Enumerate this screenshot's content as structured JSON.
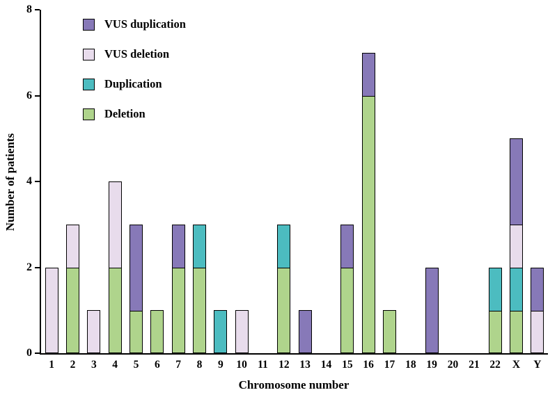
{
  "chart_data": {
    "type": "bar",
    "stacked": true,
    "title": "",
    "xlabel": "Chromosome number",
    "ylabel": "Number of patients",
    "ylim": [
      0,
      8
    ],
    "yticks": [
      0,
      2,
      4,
      6,
      8
    ],
    "grid": false,
    "legend_position": "top-left",
    "categories": [
      "1",
      "2",
      "3",
      "4",
      "5",
      "6",
      "7",
      "8",
      "9",
      "10",
      "11",
      "12",
      "13",
      "14",
      "15",
      "16",
      "17",
      "18",
      "19",
      "20",
      "21",
      "22",
      "X",
      "Y"
    ],
    "series": [
      {
        "name": "VUS duplication",
        "color": "#8779b8",
        "values": [
          0,
          0,
          0,
          0,
          2,
          0,
          1,
          0,
          0,
          0,
          0,
          0,
          1,
          0,
          1,
          1,
          0,
          0,
          2,
          0,
          0,
          0,
          2,
          1
        ]
      },
      {
        "name": "VUS deletion",
        "color": "#e8dcec",
        "values": [
          2,
          1,
          1,
          2,
          0,
          0,
          0,
          0,
          0,
          1,
          0,
          0,
          0,
          0,
          0,
          0,
          0,
          0,
          0,
          0,
          0,
          0,
          1,
          1
        ]
      },
      {
        "name": "Duplication",
        "color": "#4cbcc0",
        "values": [
          0,
          0,
          0,
          0,
          0,
          0,
          0,
          1,
          1,
          0,
          0,
          1,
          0,
          0,
          0,
          0,
          0,
          0,
          0,
          0,
          0,
          1,
          1,
          0
        ]
      },
      {
        "name": "Deletion",
        "color": "#afd48c",
        "values": [
          0,
          2,
          0,
          2,
          1,
          1,
          2,
          2,
          0,
          0,
          0,
          2,
          0,
          0,
          2,
          6,
          1,
          0,
          0,
          0,
          0,
          1,
          1,
          0
        ]
      }
    ],
    "stack_order_note": "series listed in legend order (top of stack first); stacking bottom-to-top is the reverse",
    "axis_color": "#000000",
    "background_color": "#ffffff"
  }
}
